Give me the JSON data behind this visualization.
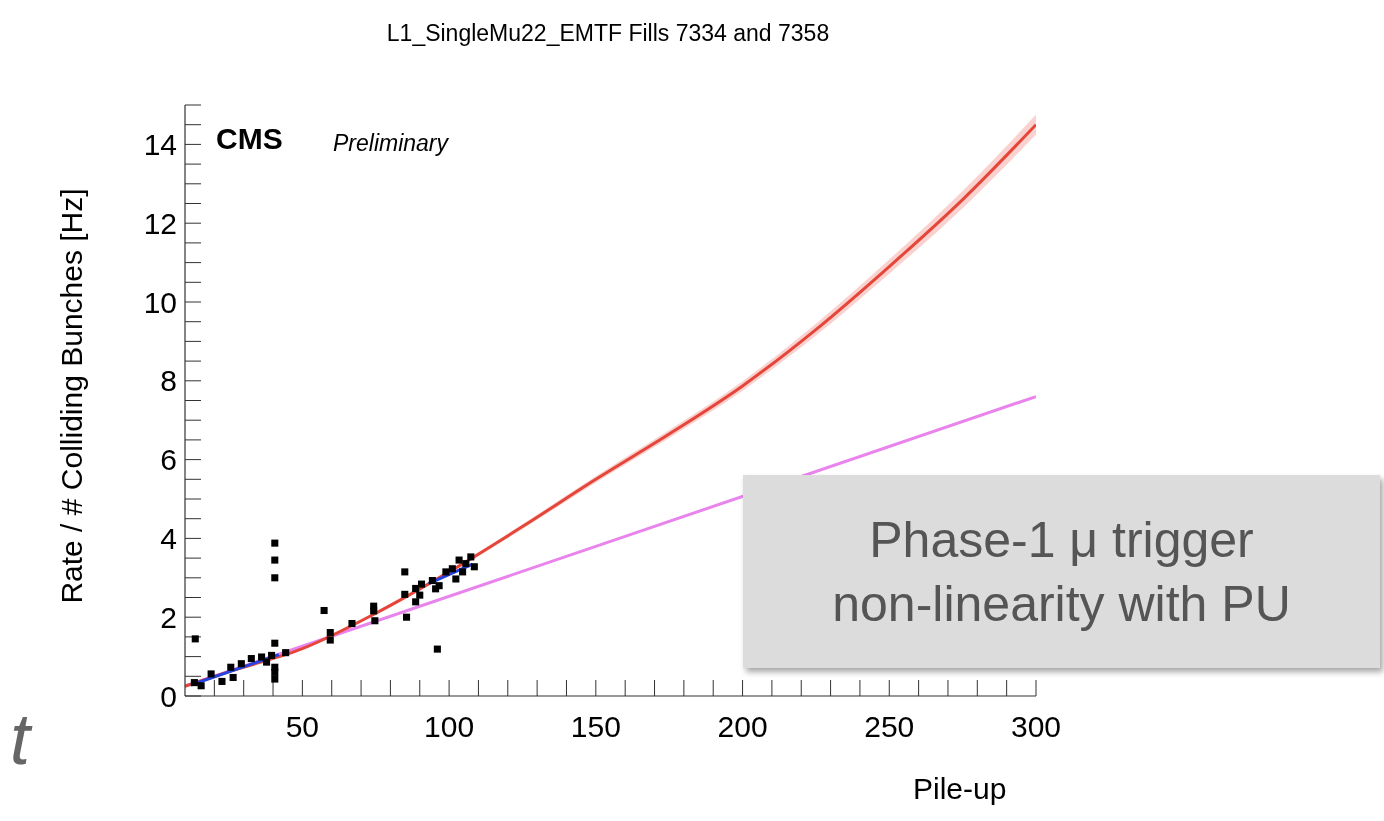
{
  "chart_data": {
    "type": "line",
    "title": "L1_SingleMu22_EMTF Fills 7334 and 7358",
    "xlabel": "Pile-up",
    "ylabel": "Rate / # Colliding Bunches [Hz]",
    "annotations": [
      "CMS",
      "Preliminary",
      "Phase-1 μ trigger\nnon-linearity with PU",
      "t"
    ],
    "xlim": [
      10,
      300
    ],
    "xticks": [
      {
        "value": 20,
        "label": null
      },
      {
        "value": 30,
        "label": null
      },
      {
        "value": 40,
        "label": null
      },
      50,
      {
        "value": 60,
        "label": null
      },
      {
        "value": 70,
        "label": null
      },
      {
        "value": 80,
        "label": null
      },
      {
        "value": 90,
        "label": null
      },
      100,
      {
        "value": 110,
        "label": null
      },
      {
        "value": 120,
        "label": null
      },
      {
        "value": 130,
        "label": null
      },
      {
        "value": 140,
        "label": null
      },
      150,
      {
        "value": 160,
        "label": null
      },
      {
        "value": 170,
        "label": null
      },
      {
        "value": 180,
        "label": null
      },
      {
        "value": 190,
        "label": null
      },
      200,
      {
        "value": 210,
        "label": null
      },
      {
        "value": 220,
        "label": null
      },
      {
        "value": 230,
        "label": null
      },
      {
        "value": 240,
        "label": null
      },
      250,
      {
        "value": 260,
        "label": null
      },
      {
        "value": 270,
        "label": null
      },
      {
        "value": 280,
        "label": null
      },
      {
        "value": 290,
        "label": null
      },
      300
    ],
    "ylim": [
      0,
      15
    ],
    "yticks": [
      0,
      {
        "value": 0.5,
        "label": null
      },
      {
        "value": 1,
        "label": null
      },
      {
        "value": 1.5,
        "label": null
      },
      2,
      {
        "value": 2.5,
        "label": null
      },
      {
        "value": 3,
        "label": null
      },
      {
        "value": 3.5,
        "label": null
      },
      4,
      {
        "value": 4.5,
        "label": null
      },
      {
        "value": 5,
        "label": null
      },
      {
        "value": 5.5,
        "label": null
      },
      6,
      {
        "value": 6.5,
        "label": null
      },
      {
        "value": 7,
        "label": null
      },
      {
        "value": 7.5,
        "label": null
      },
      8,
      {
        "value": 8.5,
        "label": null
      },
      {
        "value": 9,
        "label": null
      },
      {
        "value": 9.5,
        "label": null
      },
      10,
      {
        "value": 10.5,
        "label": null
      },
      {
        "value": 11,
        "label": null
      },
      {
        "value": 11.5,
        "label": null
      },
      12,
      {
        "value": 12.5,
        "label": null
      },
      {
        "value": 13,
        "label": null
      },
      {
        "value": 13.5,
        "label": null
      },
      14,
      {
        "value": 14.5,
        "label": null
      },
      {
        "value": 15,
        "label": null
      }
    ],
    "grid": false,
    "legend": false,
    "series": [
      {
        "color": "#e884ec",
        "marker": "none",
        "x": [
          10,
          300
        ],
        "values": [
          0.25,
          7.6
        ]
      },
      {
        "color": "#e6463a",
        "marker": "none",
        "x": [
          10,
          25,
          50,
          75,
          100,
          125,
          150,
          175,
          200,
          225,
          250,
          275,
          300
        ],
        "values": [
          0.25,
          0.62,
          1.2,
          2.1,
          3.15,
          4.3,
          5.5,
          6.65,
          7.87,
          9.3,
          10.9,
          12.6,
          14.5
        ],
        "lower": [
          0.24,
          0.6,
          1.18,
          2.07,
          3.11,
          4.24,
          5.42,
          6.55,
          7.75,
          9.15,
          10.72,
          12.38,
          14.25
        ],
        "upper": [
          0.26,
          0.64,
          1.22,
          2.13,
          3.19,
          4.36,
          5.58,
          6.75,
          7.99,
          9.45,
          11.08,
          12.82,
          14.75
        ]
      },
      {
        "color": "#2443e0",
        "marker": "none",
        "x": [
          12,
          42,
          67,
          93,
          108
        ],
        "values": [
          0.28,
          1.05,
          null,
          2.85,
          3.35
        ]
      },
      {
        "type": "scatter",
        "color": "#000000",
        "marker": "square",
        "x": [
          13.5,
          13.2,
          15.5,
          18.9,
          22.6,
          25.6,
          26.4,
          29.2,
          32.6,
          36.1,
          37.8,
          39.5,
          40.6,
          40.6,
          40.6,
          40.6,
          40.6,
          40.6,
          40.6,
          44.3,
          57.4,
          59.5,
          59.5,
          66.9,
          74.3,
          74.3,
          74.7,
          84.9,
          84.9,
          85.5,
          88.6,
          88.6,
          90,
          90.6,
          96,
          94.3,
          96.6,
          98.9,
          101.1,
          102.3,
          103.4,
          105.7,
          107.4,
          108.6,
          95.4,
          104.6
        ],
        "values": [
          1.45,
          0.34,
          0.26,
          0.56,
          0.37,
          0.73,
          0.47,
          0.82,
          0.95,
          0.99,
          0.86,
          1.03,
          3.88,
          3.45,
          3,
          1.34,
          0.73,
          0.6,
          0.43,
          1.1,
          2.17,
          1.61,
          1.42,
          1.84,
          2.28,
          2.16,
          1.91,
          3.15,
          2.58,
          2,
          2.73,
          2.39,
          2.56,
          2.84,
          1.19,
          2.93,
          2.8,
          3.15,
          3.23,
          2.97,
          3.45,
          3.36,
          3.53,
          3.28,
          2.72,
          3.15
        ]
      }
    ]
  }
}
